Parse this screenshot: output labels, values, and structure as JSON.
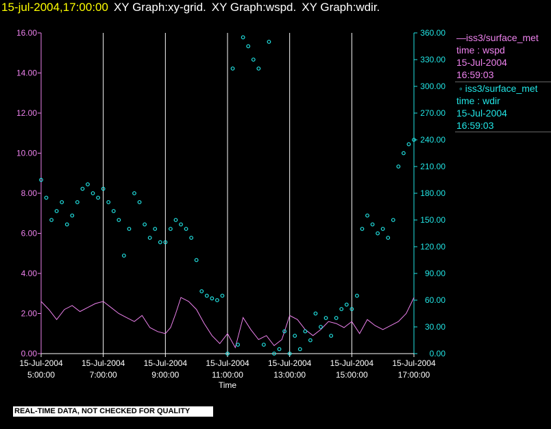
{
  "header": {
    "time": "15-jul-2004,17:00:00",
    "graphs": [
      "XY Graph:xy-grid.",
      "XY Graph:wspd.",
      "XY Graph:wdir."
    ]
  },
  "legend": {
    "series1": {
      "line1": "iss3/surface_met",
      "line2": "time : wspd",
      "line3": "15-Jul-2004",
      "line4": "16:59:03"
    },
    "series2": {
      "line1": "iss3/surface_met",
      "line2": "time : wdir",
      "line3": "15-Jul-2004",
      "line4": "16:59:03"
    }
  },
  "warning": "REAL-TIME DATA, NOT CHECKED FOR QUALITY",
  "colors": {
    "background": "#000000",
    "wspd": "#ee82ee",
    "wdir": "#22e6e6",
    "grid": "#ffffff",
    "time_title": "#ffff00"
  },
  "chart_data": {
    "type": "line",
    "xlabel": "Time",
    "x_ticks": [
      {
        "date": "15-Jul-2004",
        "time": "5:00:00"
      },
      {
        "date": "15-Jul-2004",
        "time": "7:00:00"
      },
      {
        "date": "15-Jul-2004",
        "time": "9:00:00"
      },
      {
        "date": "15-Jul-2004",
        "time": "11:00:00"
      },
      {
        "date": "15-Jul-2004",
        "time": "13:00:00"
      },
      {
        "date": "15-Jul-2004",
        "time": "15:00:00"
      },
      {
        "date": "15-Jul-2004",
        "time": "17:00:00"
      }
    ],
    "xlim": [
      "15-Jul-2004 05:00",
      "15-Jul-2004 17:00"
    ],
    "y_left": {
      "ylim": [
        0,
        16
      ],
      "ticks": [
        "0.00",
        "2.00",
        "4.00",
        "6.00",
        "8.00",
        "10.00",
        "12.00",
        "14.00",
        "16.00"
      ]
    },
    "y_right": {
      "ylim": [
        0,
        360
      ],
      "ticks": [
        "0.00",
        "30.00",
        "60.00",
        "90.00",
        "120.00",
        "150.00",
        "180.00",
        "210.00",
        "240.00",
        "270.00",
        "300.00",
        "330.00",
        "360.00"
      ]
    },
    "series": [
      {
        "legend": "iss3/surface_met time : wspd",
        "style": "line",
        "axis": "left",
        "time": [
          "05:00",
          "05:15",
          "05:30",
          "05:45",
          "06:00",
          "06:15",
          "06:30",
          "06:45",
          "07:00",
          "07:15",
          "07:30",
          "07:45",
          "08:00",
          "08:15",
          "08:30",
          "08:45",
          "09:00",
          "09:10",
          "09:20",
          "09:30",
          "09:45",
          "10:00",
          "10:15",
          "10:30",
          "10:45",
          "11:00",
          "11:15",
          "11:30",
          "11:45",
          "12:00",
          "12:15",
          "12:30",
          "12:45",
          "13:00",
          "13:15",
          "13:30",
          "13:45",
          "14:00",
          "14:15",
          "14:30",
          "14:45",
          "15:00",
          "15:15",
          "15:30",
          "15:45",
          "16:00",
          "16:15",
          "16:30",
          "16:45",
          "17:00"
        ],
        "values": [
          2.6,
          2.2,
          1.7,
          2.2,
          2.4,
          2.1,
          2.3,
          2.5,
          2.6,
          2.3,
          2.0,
          1.8,
          1.6,
          1.9,
          1.3,
          1.1,
          1.0,
          1.3,
          2.0,
          2.8,
          2.6,
          2.2,
          1.5,
          0.9,
          0.5,
          1.0,
          0.3,
          1.8,
          1.2,
          0.7,
          0.9,
          0.4,
          0.7,
          1.9,
          1.7,
          1.2,
          0.9,
          1.2,
          1.6,
          1.5,
          1.3,
          1.6,
          1.0,
          1.7,
          1.4,
          1.2,
          1.4,
          1.6,
          2.0,
          2.8
        ]
      },
      {
        "legend": "iss3/surface_met time : wdir",
        "style": "markers",
        "axis": "right",
        "time": [
          "05:00",
          "05:10",
          "05:20",
          "05:30",
          "05:40",
          "05:50",
          "06:00",
          "06:10",
          "06:20",
          "06:30",
          "06:40",
          "06:50",
          "07:00",
          "07:10",
          "07:20",
          "07:30",
          "07:40",
          "07:50",
          "08:00",
          "08:10",
          "08:20",
          "08:30",
          "08:40",
          "08:50",
          "09:00",
          "09:10",
          "09:20",
          "09:30",
          "09:40",
          "09:50",
          "10:00",
          "10:10",
          "10:20",
          "10:30",
          "10:40",
          "10:50",
          "11:00",
          "11:10",
          "11:20",
          "11:30",
          "11:40",
          "11:50",
          "12:00",
          "12:10",
          "12:20",
          "12:30",
          "12:40",
          "12:50",
          "13:00",
          "13:10",
          "13:20",
          "13:30",
          "13:40",
          "13:50",
          "14:00",
          "14:10",
          "14:20",
          "14:30",
          "14:40",
          "14:50",
          "15:00",
          "15:10",
          "15:20",
          "15:30",
          "15:40",
          "15:50",
          "16:00",
          "16:10",
          "16:20",
          "16:30",
          "16:40",
          "16:50",
          "17:00"
        ],
        "values": [
          195,
          175,
          150,
          160,
          170,
          145,
          155,
          170,
          185,
          190,
          180,
          175,
          185,
          170,
          160,
          150,
          110,
          140,
          180,
          170,
          145,
          130,
          140,
          125,
          125,
          140,
          150,
          145,
          140,
          130,
          105,
          70,
          65,
          62,
          60,
          65,
          0,
          320,
          10,
          355,
          345,
          330,
          320,
          10,
          350,
          0,
          5,
          25,
          0,
          20,
          5,
          25,
          15,
          45,
          30,
          40,
          20,
          40,
          50,
          55,
          50,
          65,
          140,
          155,
          145,
          135,
          140,
          130,
          150,
          210,
          225,
          235,
          240
        ]
      }
    ]
  }
}
